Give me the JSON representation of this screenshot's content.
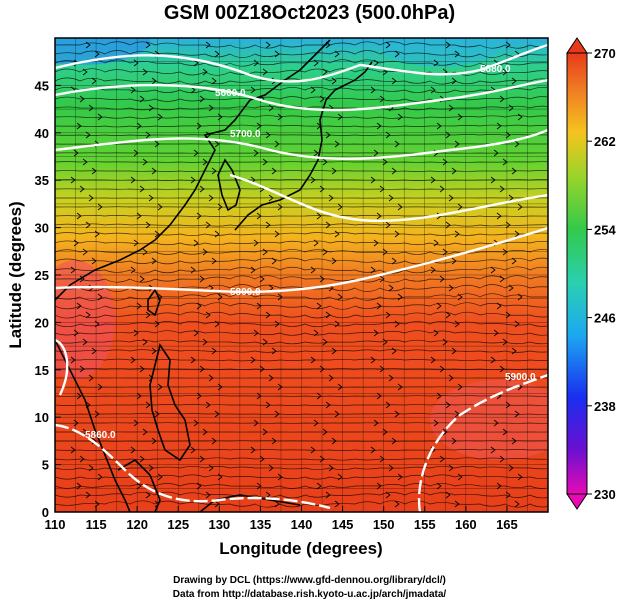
{
  "title": "GSM 00Z18Oct2023 (500.0hPa)",
  "chart_data": {
    "type": "heatmap",
    "map_region": "Northwest Pacific / East Asia",
    "xlabel": "Longitude (degrees)",
    "ylabel": "Latitude  (degrees)",
    "xlim": [
      110,
      170
    ],
    "ylim": [
      0,
      50
    ],
    "x_ticks": [
      "110",
      "115",
      "120",
      "125",
      "130",
      "135",
      "140",
      "145",
      "150",
      "155",
      "160",
      "165"
    ],
    "y_ticks": [
      "0",
      "5",
      "10",
      "15",
      "20",
      "25",
      "30",
      "35",
      "40",
      "45"
    ],
    "colorbar": {
      "min": 230,
      "max": 270,
      "ticks": [
        "270",
        "262",
        "254",
        "246",
        "238",
        "230"
      ]
    },
    "contour_labels": [
      "5600.0",
      "5700.0",
      "5800.0",
      "5900.0",
      "5860.0",
      "5880.0"
    ],
    "overlays": [
      "streamlines (wind)",
      "white height contours"
    ]
  },
  "credits": {
    "line1": "Drawing by DCL (https://www.gfd-dennou.org/library/dcl/)",
    "line2": "Data from http://database.rish.kyoto-u.ac.jp/arch/jmadata/"
  }
}
